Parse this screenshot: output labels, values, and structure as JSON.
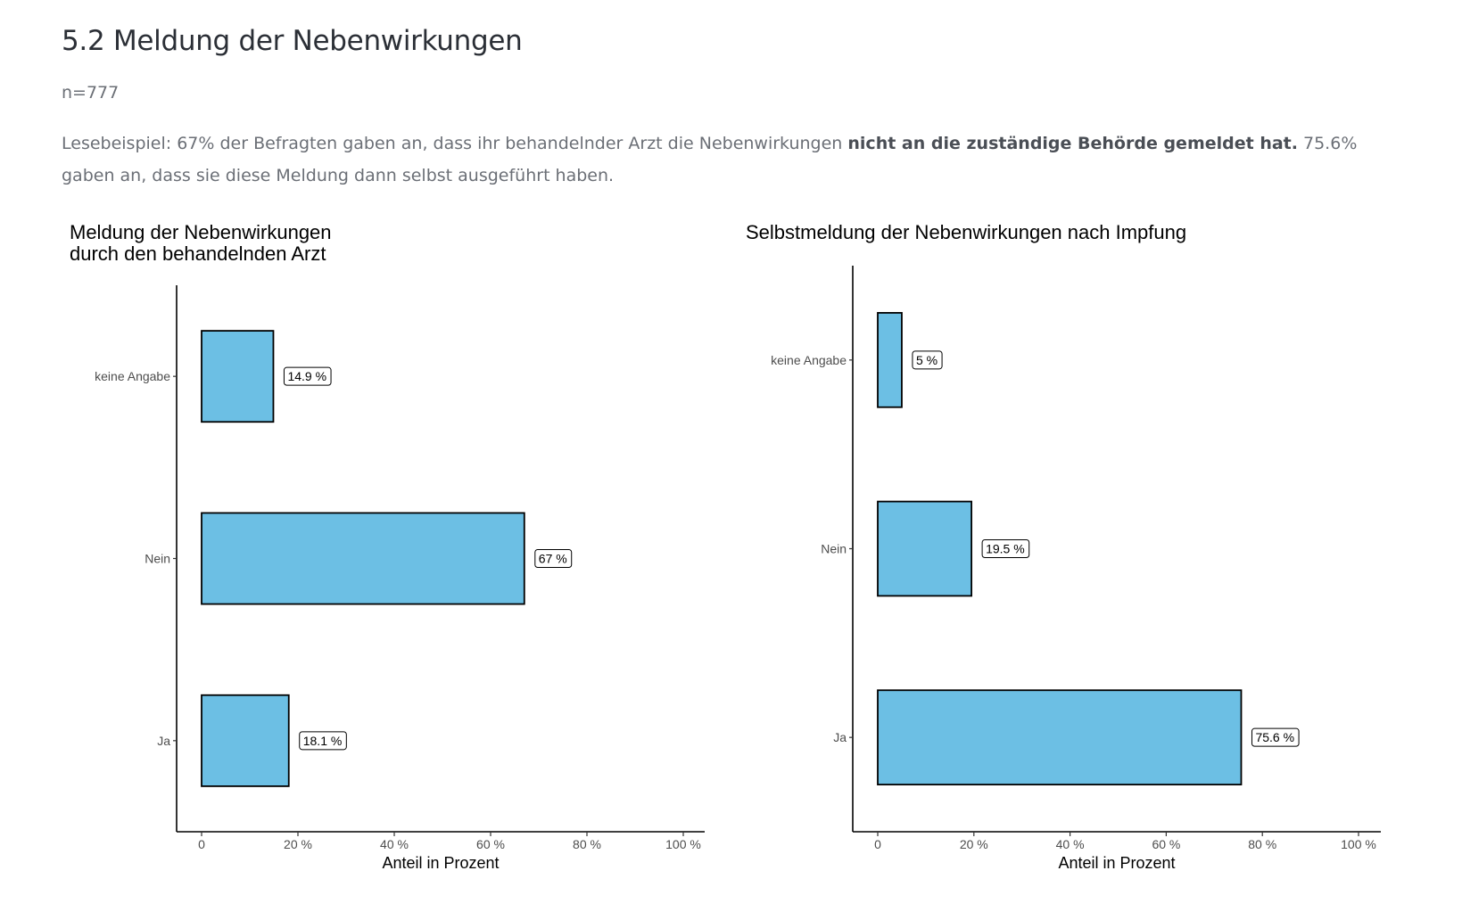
{
  "header": {
    "title": "5.2 Meldung der Nebenwirkungen",
    "sample_size": "n=777",
    "reading_example": {
      "part1": "Lesebeispiel: 67% der Befragten gaben an, dass ihr behandelnder Arzt die Nebenwirkungen ",
      "bold": "nicht an die zuständige Behörde gemeldet hat.",
      "part2": " 75.6% gaben an, dass sie diese Meldung dann selbst ausgeführt haben."
    }
  },
  "chart_data": [
    {
      "type": "bar",
      "orientation": "horizontal",
      "title": [
        "Meldung der Nebenwirkungen",
        "durch den behandelnden Arzt"
      ],
      "categories": [
        "keine Angabe",
        "Nein",
        "Ja"
      ],
      "values": [
        14.9,
        67,
        18.1
      ],
      "value_labels": [
        "14.9 %",
        "67 %",
        "18.1 %"
      ],
      "xlabel": "Anteil in Prozent",
      "ylabel": "",
      "xlim": [
        0,
        100
      ],
      "xticks": [
        0,
        20,
        40,
        60,
        80,
        100
      ],
      "xtick_labels": [
        "0",
        "20 %",
        "40 %",
        "60 %",
        "80 %",
        "100 %"
      ],
      "bar_color": "#6cbfe4",
      "grid": false
    },
    {
      "type": "bar",
      "orientation": "horizontal",
      "title": [
        "Selbstmeldung der Nebenwirkungen nach Impfung"
      ],
      "categories": [
        "keine Angabe",
        "Nein",
        "Ja"
      ],
      "values": [
        5,
        19.5,
        75.6
      ],
      "value_labels": [
        "5 %",
        "19.5 %",
        "75.6 %"
      ],
      "xlabel": "Anteil in Prozent",
      "ylabel": "",
      "xlim": [
        0,
        100
      ],
      "xticks": [
        0,
        20,
        40,
        60,
        80,
        100
      ],
      "xtick_labels": [
        "0",
        "20 %",
        "40 %",
        "60 %",
        "80 %",
        "100 %"
      ],
      "bar_color": "#6cbfe4",
      "grid": false
    }
  ]
}
